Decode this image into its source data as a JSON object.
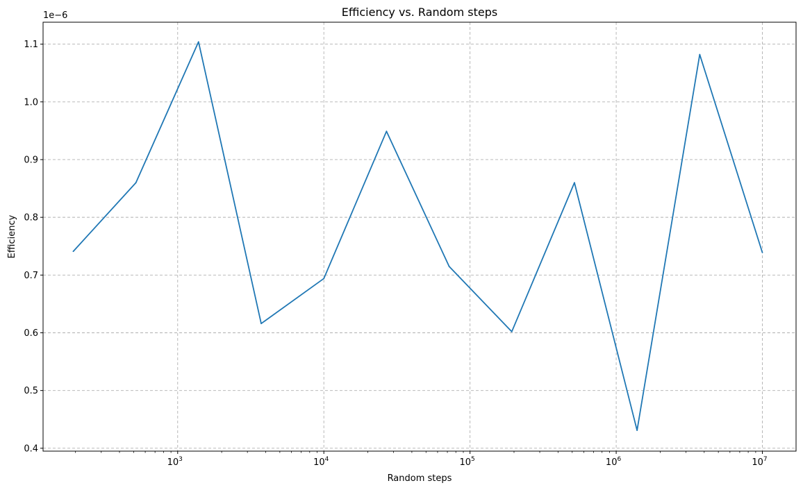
{
  "chart_data": {
    "type": "line",
    "title": "Efficiency vs. Random steps",
    "xlabel": "Random steps",
    "ylabel": "Efficiency",
    "xscale": "log",
    "yscale": "linear",
    "offset_label": "1e−6",
    "y_multiplier": 1e-06,
    "grid": true,
    "xlim": [
      120,
      17000000
    ],
    "ylim": [
      0.395,
      1.138
    ],
    "x_ticks": [
      1000,
      10000,
      100000,
      1000000,
      10000000
    ],
    "x_tick_labels": [
      {
        "base": "10",
        "exp": "3"
      },
      {
        "base": "10",
        "exp": "4"
      },
      {
        "base": "10",
        "exp": "5"
      },
      {
        "base": "10",
        "exp": "6"
      },
      {
        "base": "10",
        "exp": "7"
      }
    ],
    "y_ticks": [
      0.4,
      0.5,
      0.6,
      0.7,
      0.8,
      0.9,
      1.0,
      1.1
    ],
    "y_tick_labels": [
      "0.4",
      "0.5",
      "0.6",
      "0.7",
      "0.8",
      "0.9",
      "1.0",
      "1.1"
    ],
    "series": [
      {
        "color": "#1f77b4",
        "x": [
          193,
          518,
          1389,
          3728,
          10000,
          26827,
          71969,
          193070,
          517948,
          1389495,
          3727594,
          10000000
        ],
        "y": [
          0.741,
          0.86,
          1.104,
          0.616,
          0.694,
          0.949,
          0.715,
          0.602,
          0.86,
          0.431,
          1.082,
          0.739
        ]
      }
    ]
  }
}
